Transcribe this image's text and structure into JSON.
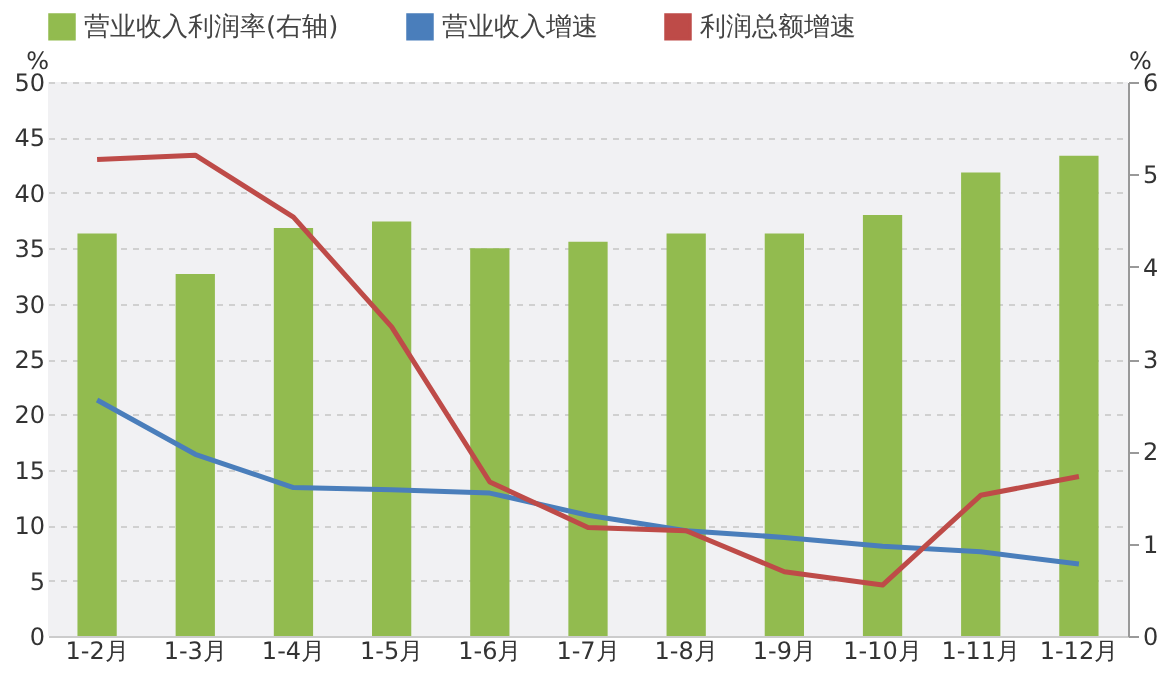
{
  "chart_data": {
    "type": "bar",
    "categories": [
      "1-2月",
      "1-3月",
      "1-4月",
      "1-5月",
      "1-6月",
      "1-7月",
      "1-8月",
      "1-9月",
      "1-10月",
      "1-11月",
      "1-12月"
    ],
    "series": [
      {
        "name": "营业收入利润率(右轴)",
        "axis": "y2",
        "color": "#92bb4f",
        "values": [
          4.36,
          3.92,
          4.42,
          4.49,
          4.2,
          4.27,
          4.36,
          4.36,
          4.56,
          5.02,
          5.2
        ]
      },
      {
        "name": "营业收入增速",
        "type": "line",
        "color": "#4a7ebb",
        "values": [
          21.3,
          16.4,
          13.4,
          13.2,
          12.9,
          10.9,
          9.5,
          8.9,
          8.1,
          7.6,
          6.5
        ]
      },
      {
        "name": "利润总额增速",
        "type": "line",
        "color": "#be4b48",
        "values": [
          43,
          43.4,
          37.8,
          27.9,
          13.9,
          9.8,
          9.5,
          5.8,
          4.6,
          12.7,
          14.4
        ]
      }
    ],
    "ylabel": "%",
    "y2label": "%",
    "ylim": [
      0,
      50
    ],
    "yticks": [
      0,
      5,
      10,
      15,
      20,
      25,
      30,
      35,
      40,
      45,
      50
    ],
    "y2lim": [
      0,
      6
    ],
    "y2ticks": [
      0,
      1,
      2,
      3,
      4,
      5,
      6
    ],
    "grid": "y",
    "legend": "top"
  }
}
